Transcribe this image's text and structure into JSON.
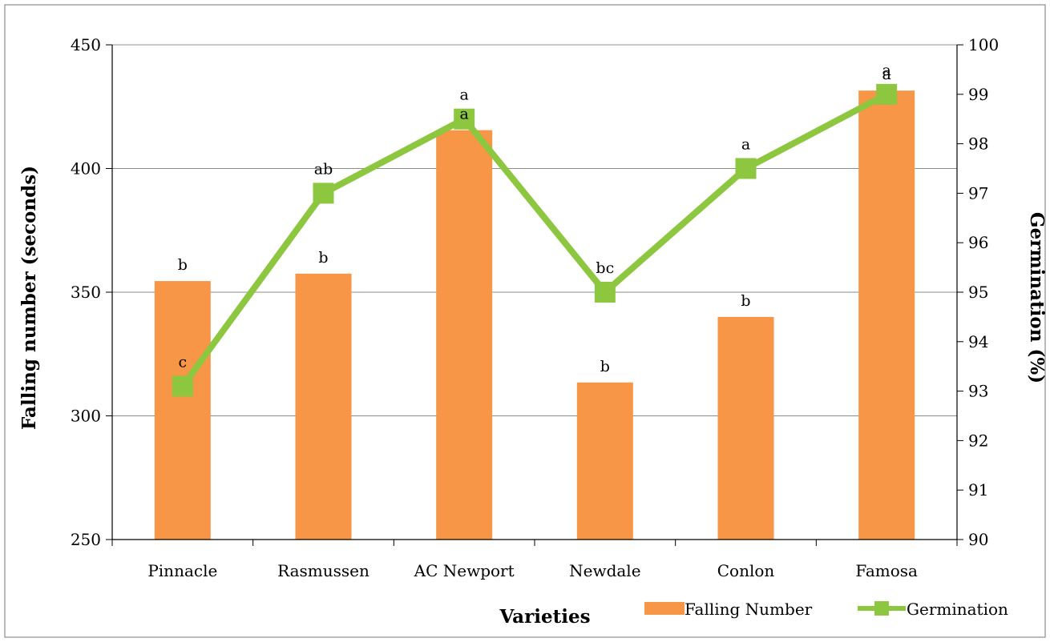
{
  "chart_data": {
    "type": "bar",
    "title": "",
    "xlabel": "Varieties",
    "ylabel": "Falling number (seconds)",
    "y2label": "Germination (%)",
    "categories": [
      "Pinnacle",
      "Rasmussen",
      "AC Newport",
      "Newdale",
      "Conlon",
      "Famosa"
    ],
    "ylim": [
      250,
      450
    ],
    "yticks": [
      250,
      300,
      350,
      400,
      450
    ],
    "y2lim": [
      90,
      100
    ],
    "y2ticks": [
      90,
      91,
      92,
      93,
      94,
      95,
      96,
      97,
      98,
      99,
      100
    ],
    "grid": true,
    "legend_position": "bottom-right",
    "series": [
      {
        "name": "Falling Number",
        "type": "bar",
        "axis": "left",
        "color": "#F79646",
        "values": [
          354.5,
          357.5,
          415.5,
          313.5,
          340,
          431.5
        ],
        "letters": [
          "b",
          "b",
          "a",
          "b",
          "b",
          "a"
        ]
      },
      {
        "name": "Germination",
        "type": "line",
        "axis": "right",
        "color": "#8DC63F",
        "values": [
          93.1,
          97.0,
          98.5,
          95.0,
          97.5,
          99.0
        ],
        "letters": [
          "c",
          "ab",
          "a",
          "bc",
          "a",
          "a"
        ]
      }
    ]
  }
}
